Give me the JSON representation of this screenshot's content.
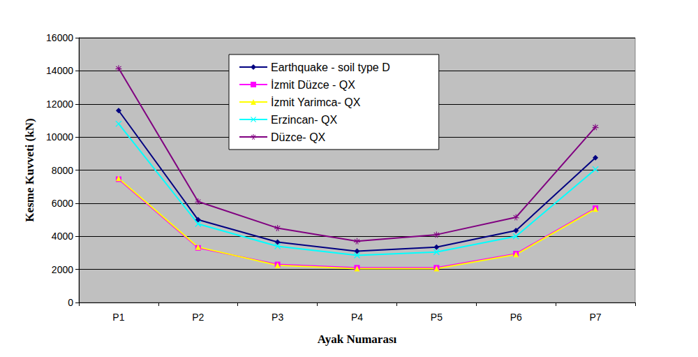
{
  "chart_data": {
    "type": "line",
    "x_label": "Ayak Numarası",
    "y_label": "Kesme Kuvveti (kN)",
    "categories": [
      "P1",
      "P2",
      "P3",
      "P4",
      "P5",
      "P6",
      "P7"
    ],
    "series": [
      {
        "name": "Earthquake - soil type D",
        "color": "#000080",
        "marker": "diamond",
        "values": [
          11600,
          5000,
          3650,
          3100,
          3350,
          4350,
          8750
        ]
      },
      {
        "name": "İzmit Düzce - QX",
        "color": "#ff00ff",
        "marker": "square",
        "values": [
          7450,
          3300,
          2300,
          2100,
          2100,
          2950,
          5700
        ]
      },
      {
        "name": "İzmit Yarimca- QX",
        "color": "#ffff00",
        "marker": "triangle",
        "values": [
          7500,
          3350,
          2250,
          2050,
          2050,
          2900,
          5650
        ]
      },
      {
        "name": "Erzincan- QX",
        "color": "#00ffff",
        "marker": "x",
        "values": [
          10800,
          4750,
          3400,
          2850,
          3050,
          4000,
          8050
        ]
      },
      {
        "name": "Düzce- QX",
        "color": "#800080",
        "marker": "star",
        "values": [
          14150,
          6100,
          4500,
          3700,
          4100,
          5150,
          10600
        ]
      }
    ],
    "ylim": [
      0,
      16000
    ],
    "yticks": [
      0,
      2000,
      4000,
      6000,
      8000,
      10000,
      12000,
      14000,
      16000
    ],
    "grid": true,
    "legend": "top"
  }
}
